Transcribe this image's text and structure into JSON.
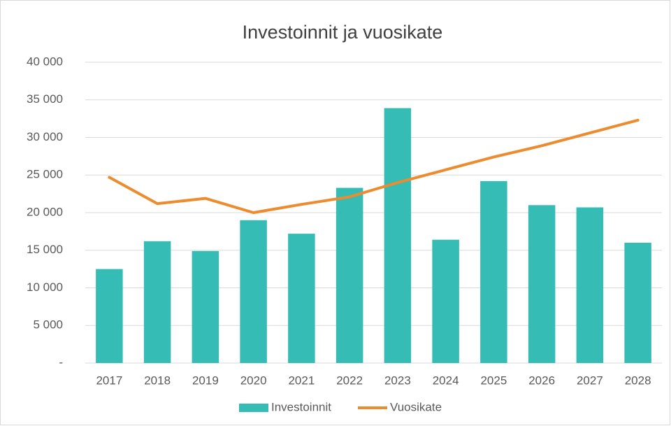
{
  "chart_data": {
    "type": "bar-line",
    "title": "Investoinnit ja vuosikate",
    "categories": [
      "2017",
      "2018",
      "2019",
      "2020",
      "2021",
      "2022",
      "2023",
      "2024",
      "2025",
      "2026",
      "2027",
      "2028"
    ],
    "series": [
      {
        "name": "Investoinnit",
        "type": "bar",
        "color": "#35bdb5",
        "values": [
          12500,
          16200,
          14900,
          19000,
          17200,
          23300,
          33900,
          16400,
          24200,
          21000,
          20700,
          16000
        ]
      },
      {
        "name": "Vuosikate",
        "type": "line",
        "color": "#ed8b2f",
        "values": [
          24700,
          21200,
          21900,
          20000,
          21100,
          22100,
          24000,
          25700,
          27400,
          28900,
          30600,
          32300
        ]
      }
    ],
    "ylim": [
      0,
      40000
    ],
    "yticks": [
      {
        "value": 0,
        "label": "-"
      },
      {
        "value": 5000,
        "label": "5 000"
      },
      {
        "value": 10000,
        "label": "10 000"
      },
      {
        "value": 15000,
        "label": "15 000"
      },
      {
        "value": 20000,
        "label": "20 000"
      },
      {
        "value": 25000,
        "label": "25 000"
      },
      {
        "value": 30000,
        "label": "30 000"
      },
      {
        "value": 35000,
        "label": "35 000"
      },
      {
        "value": 40000,
        "label": "40 000"
      }
    ],
    "grid": true,
    "legend": "bottom"
  }
}
